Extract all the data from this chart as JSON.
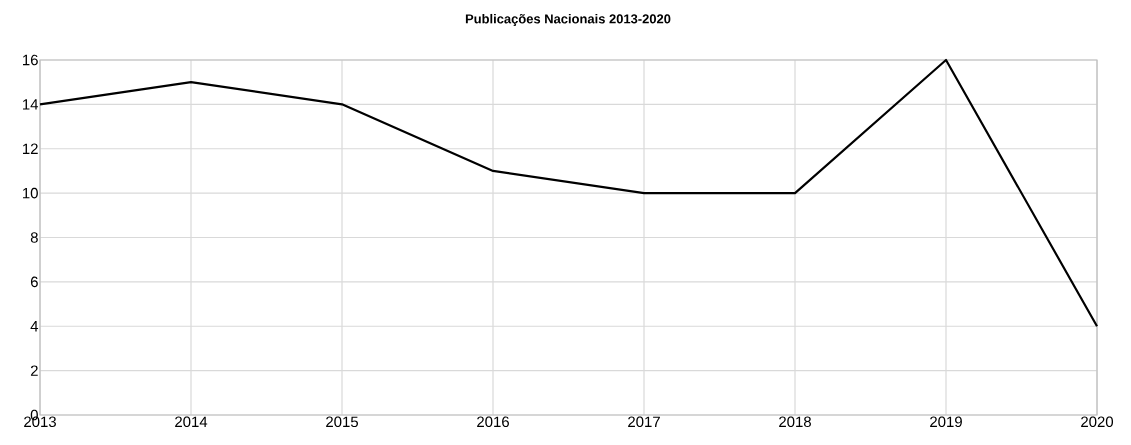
{
  "chart_data": {
    "type": "line",
    "title": "Publicações Nacionais 2013-2020",
    "categories": [
      "2013",
      "2014",
      "2015",
      "2016",
      "2017",
      "2018",
      "2019",
      "2020"
    ],
    "values": [
      14,
      15,
      14,
      11,
      10,
      10,
      16,
      4
    ],
    "color": "#000000",
    "ylim": [
      0,
      16
    ],
    "yticks": [
      0,
      2,
      4,
      6,
      8,
      10,
      12,
      14,
      16
    ],
    "grid": true
  }
}
